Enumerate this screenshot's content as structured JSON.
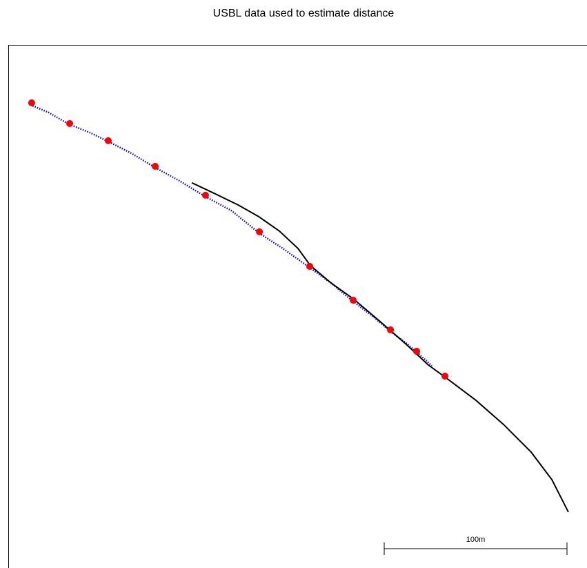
{
  "chart_data": {
    "type": "scatter",
    "title": "USBL data used to estimate distance",
    "xlim": [
      0,
      316.6
    ],
    "ylim": [
      0,
      286
    ],
    "scale_bar": {
      "value": 100,
      "label": "100m"
    },
    "series": [
      {
        "mode": "dotted-line",
        "color": "#0000ff",
        "x": [
          12.1,
          21.9,
          33.2,
          44.5,
          54.7,
          67.2,
          80.4,
          93.6,
          107.9,
          121.9,
          137.4,
          150.2,
          164.9,
          176.6,
          188.7,
          199.2,
          209.1,
          218.1,
          223.4,
          231.7
        ],
        "values": [
          253.2,
          249.1,
          242.6,
          238.1,
          233.2,
          226.8,
          218.9,
          211.7,
          203.0,
          195.5,
          183.0,
          174.7,
          164.2,
          155.8,
          145.7,
          137.7,
          129.4,
          122.6,
          118.1,
          110.6
        ]
      },
      {
        "mode": "line",
        "color": "#000000",
        "x": [
          100.4,
          112.5,
          125.7,
          137.0,
          148.3,
          158.5,
          165.3,
          176.6,
          188.7,
          203.0,
          218.1,
          229.4,
          240.8,
          255.8,
          270.9,
          286.0,
          297.4,
          306.4
        ],
        "values": [
          210.6,
          204.9,
          198.5,
          192.1,
          184.2,
          174.7,
          165.3,
          155.8,
          147.2,
          135.1,
          121.9,
          111.3,
          103.0,
          91.7,
          78.5,
          63.4,
          48.3,
          30.6
        ]
      },
      {
        "mode": "markers",
        "color": "#ff0000",
        "x": [
          12.8,
          33.6,
          54.7,
          80.4,
          107.9,
          137.4,
          164.9,
          188.7,
          209.1,
          223.4,
          238.9
        ],
        "values": [
          254.3,
          243.0,
          233.6,
          219.6,
          203.8,
          183.8,
          164.9,
          146.4,
          130.2,
          118.5,
          104.9
        ]
      }
    ]
  }
}
